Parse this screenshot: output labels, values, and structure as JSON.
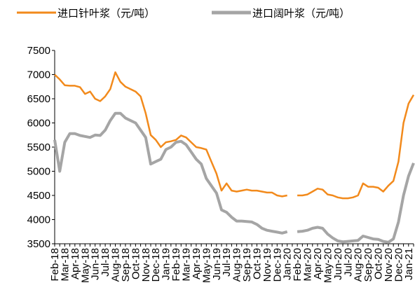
{
  "chart_data": {
    "type": "line",
    "categories": [
      "Feb-18",
      null,
      "Mar-18",
      null,
      "Apr-18",
      null,
      "May-18",
      null,
      "Jun-18",
      null,
      "Jul-18",
      null,
      "Aug-18",
      null,
      "Sep-18",
      null,
      "Oct-18",
      null,
      "Nov-18",
      null,
      "Dec-18",
      null,
      "Jan-19",
      null,
      "Feb-19",
      null,
      "Mar-19",
      null,
      "Apr-19",
      null,
      "May-19",
      null,
      "Jun-19",
      null,
      "Jul-19",
      null,
      "Aug-19",
      null,
      "Sep-19",
      null,
      "Oct-19",
      null,
      "Nov-19",
      null,
      "Dec-19",
      null,
      "Jan-20",
      null,
      "Feb-20",
      null,
      "Mar-20",
      null,
      "Apr-20",
      null,
      "May-20",
      null,
      "Jun-20",
      null,
      "Jul-20",
      null,
      "Aug-20",
      null,
      "Sep-20",
      null,
      "Oct-20",
      null,
      "Nov-20",
      null,
      "Dec-20",
      null,
      "Jan-21",
      null
    ],
    "series": [
      {
        "name": "进口针叶浆（元/吨）",
        "color": "#f28a1c",
        "values": [
          7000,
          6900,
          6780,
          6770,
          6770,
          6740,
          6600,
          6650,
          6500,
          6450,
          6550,
          6700,
          7050,
          6850,
          6750,
          6700,
          6650,
          6550,
          6200,
          5750,
          5650,
          5500,
          5600,
          5620,
          5650,
          5740,
          5700,
          5600,
          5500,
          5480,
          5450,
          5200,
          4950,
          4600,
          4750,
          4600,
          4580,
          4600,
          4620,
          4600,
          4600,
          4580,
          4560,
          4560,
          4500,
          4480,
          4500,
          null,
          4500,
          4500,
          4520,
          4580,
          4640,
          4620,
          4520,
          4500,
          4460,
          4440,
          4440,
          4460,
          4500,
          4750,
          4680,
          4680,
          4660,
          4580,
          4700,
          4800,
          5200,
          6000,
          6400,
          6580
        ]
      },
      {
        "name": "进口阔叶浆（元/吨）",
        "color": "#a5a5a5",
        "values": [
          5650,
          5000,
          5600,
          5780,
          5780,
          5740,
          5720,
          5700,
          5750,
          5740,
          5850,
          6050,
          6200,
          6200,
          6100,
          6050,
          6000,
          5850,
          5700,
          5150,
          5200,
          5250,
          5450,
          5500,
          5600,
          5620,
          5550,
          5400,
          5250,
          5150,
          4850,
          4700,
          4550,
          4200,
          4150,
          4050,
          3970,
          3970,
          3960,
          3950,
          3900,
          3820,
          3780,
          3760,
          3740,
          3720,
          3750,
          null,
          3750,
          3760,
          3780,
          3820,
          3840,
          3820,
          3700,
          3620,
          3560,
          3540,
          3550,
          3560,
          3570,
          3660,
          3630,
          3600,
          3590,
          3550,
          3530,
          3600,
          3950,
          4500,
          4900,
          5170
        ]
      }
    ],
    "ylim": [
      3500,
      7500
    ],
    "yticks": [
      3500,
      4000,
      4500,
      5000,
      5500,
      6000,
      6500,
      7000,
      7500
    ]
  }
}
